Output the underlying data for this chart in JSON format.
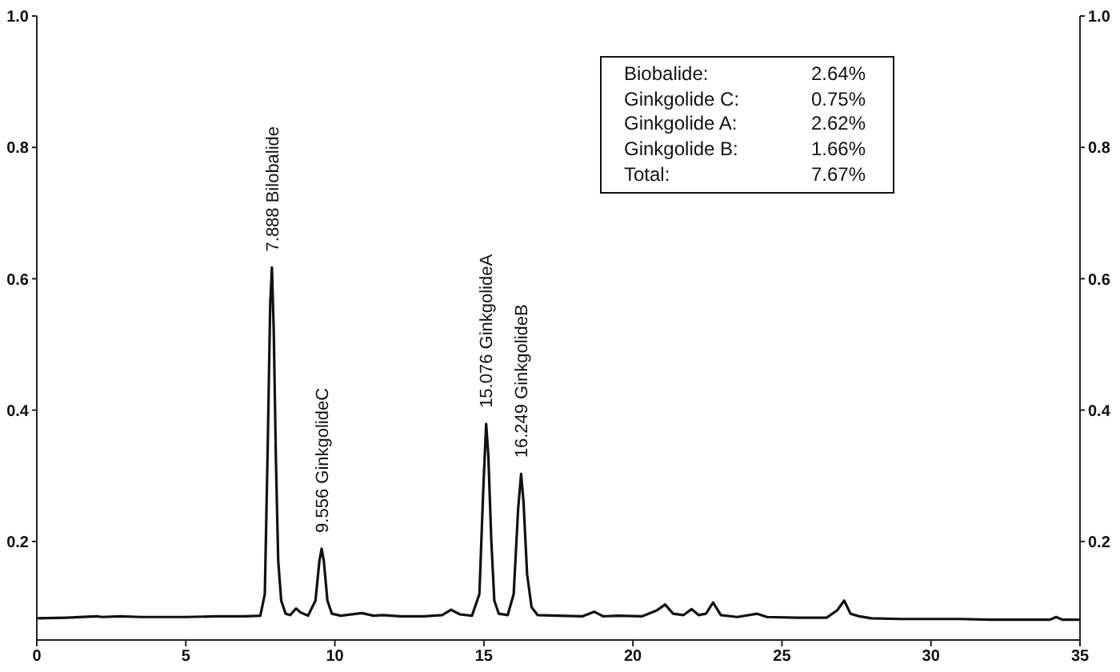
{
  "chart_data": {
    "type": "line",
    "x": [
      0,
      1,
      2,
      2.2,
      2.8,
      3.5,
      5,
      6,
      7,
      7.5,
      7.65,
      7.75,
      7.83,
      7.888,
      7.95,
      8.02,
      8.1,
      8.2,
      8.35,
      8.5,
      8.7,
      8.85,
      9.1,
      9.35,
      9.48,
      9.556,
      9.63,
      9.75,
      9.9,
      10.2,
      10.9,
      11.3,
      11.6,
      12.2,
      13,
      13.6,
      13.9,
      14.2,
      14.6,
      14.85,
      14.98,
      15.076,
      15.15,
      15.25,
      15.35,
      15.5,
      15.8,
      16,
      16.15,
      16.249,
      16.33,
      16.45,
      16.6,
      16.8,
      17.5,
      18.3,
      18.7,
      19,
      19.5,
      20.3,
      20.8,
      21.08,
      21.35,
      21.7,
      21.97,
      22.2,
      22.45,
      22.69,
      22.95,
      23.5,
      24.17,
      24.5,
      25.5,
      26.5,
      26.85,
      27.09,
      27.3,
      27.6,
      28,
      29,
      30,
      31,
      32,
      33,
      34,
      34.2,
      34.4,
      35
    ],
    "series": [
      {
        "color": "#111111",
        "values": [
          0.083,
          0.084,
          0.086,
          0.085,
          0.086,
          0.085,
          0.085,
          0.086,
          0.086,
          0.087,
          0.12,
          0.35,
          0.56,
          0.617,
          0.52,
          0.33,
          0.17,
          0.11,
          0.09,
          0.088,
          0.098,
          0.092,
          0.087,
          0.11,
          0.17,
          0.189,
          0.17,
          0.11,
          0.09,
          0.087,
          0.091,
          0.087,
          0.088,
          0.086,
          0.086,
          0.088,
          0.096,
          0.089,
          0.087,
          0.12,
          0.28,
          0.379,
          0.33,
          0.2,
          0.11,
          0.09,
          0.088,
          0.12,
          0.25,
          0.303,
          0.26,
          0.15,
          0.1,
          0.088,
          0.087,
          0.086,
          0.093,
          0.086,
          0.087,
          0.086,
          0.095,
          0.104,
          0.09,
          0.088,
          0.097,
          0.088,
          0.09,
          0.107,
          0.088,
          0.085,
          0.09,
          0.085,
          0.084,
          0.084,
          0.095,
          0.11,
          0.09,
          0.086,
          0.083,
          0.082,
          0.082,
          0.082,
          0.081,
          0.081,
          0.081,
          0.085,
          0.081,
          0.081
        ]
      }
    ],
    "xlim": [
      0,
      35
    ],
    "xticks": [
      0,
      5,
      10,
      15,
      20,
      25,
      30,
      35
    ],
    "ylim": [
      0.05,
      1
    ],
    "yticks": [
      0.2,
      0.4,
      0.6,
      0.8,
      {
        "value": 1,
        "label": "1.0"
      }
    ],
    "y2lim": [
      0.05,
      1
    ],
    "y2ticks": [
      0.2,
      0.4,
      0.6,
      0.8,
      {
        "value": 1,
        "label": "1.0"
      }
    ],
    "line_style": "solid",
    "annotations": [
      {
        "text": "7.888 Bilobalide",
        "x": 7.888,
        "y": 0.617
      },
      {
        "text": "9.556 GinkgolideC",
        "x": 9.556,
        "y": 0.189
      },
      {
        "text": "15.076 GinkgolideA",
        "x": 15.076,
        "y": 0.379
      },
      {
        "text": "16.249 GinkgolideB",
        "x": 16.249,
        "y": 0.303
      },
      "Biobalide:",
      "2.64%",
      "Ginkgolide C:",
      "0.75%",
      "Ginkgolide A:",
      "2.62%",
      "Ginkgolide B:",
      "1.66%",
      "Total:",
      "7.67%"
    ]
  }
}
